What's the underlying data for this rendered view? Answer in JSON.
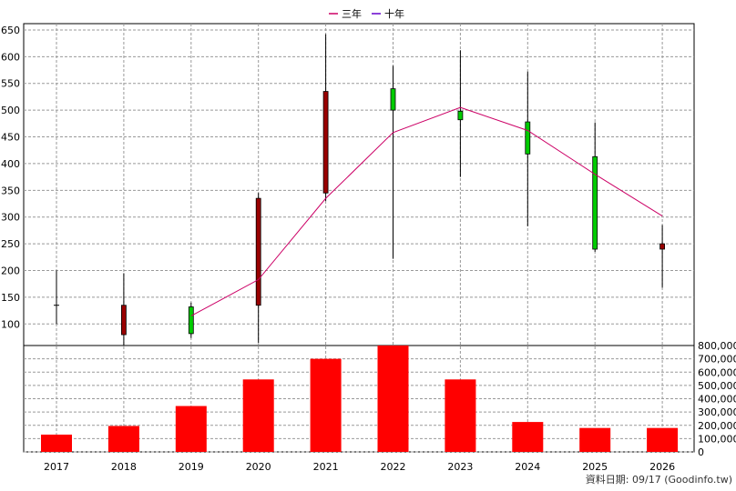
{
  "chart_data": {
    "type": "candlestick",
    "legend": {
      "placement": "top-center",
      "entries": [
        {
          "label": "三年",
          "color": "#cc0066"
        },
        {
          "label": "十年",
          "color": "#6600cc"
        }
      ]
    },
    "categories": [
      "2017",
      "2018",
      "2019",
      "2020",
      "2021",
      "2022",
      "2023",
      "2024",
      "2025",
      "2026"
    ],
    "price_axis": {
      "ylim": [
        58,
        655
      ],
      "ticks": [
        100,
        150,
        200,
        250,
        300,
        350,
        400,
        450,
        500,
        550,
        600,
        650
      ],
      "grid": true
    },
    "candles": [
      {
        "year": "2017",
        "open": 135,
        "close": 135,
        "high": 200,
        "low": 100
      },
      {
        "year": "2018",
        "open": 80,
        "close": 135,
        "high": 195,
        "low": 60
      },
      {
        "year": "2019",
        "open": 132,
        "close": 82,
        "high": 140,
        "low": 74
      },
      {
        "year": "2020",
        "open": 135,
        "close": 335,
        "high": 345,
        "low": 65
      },
      {
        "year": "2021",
        "open": 345,
        "close": 535,
        "high": 642,
        "low": 330
      },
      {
        "year": "2022",
        "open": 540,
        "close": 500,
        "high": 583,
        "low": 222
      },
      {
        "year": "2023",
        "open": 498,
        "close": 482,
        "high": 612,
        "low": 375
      },
      {
        "year": "2024",
        "open": 478,
        "close": 418,
        "high": 572,
        "low": 283
      },
      {
        "year": "2025",
        "open": 413,
        "close": 240,
        "high": 477,
        "low": 235
      },
      {
        "year": "2026",
        "open": 240,
        "close": 250,
        "high": 285,
        "low": 168
      }
    ],
    "up_color": "#990000",
    "down_color": "#00cc00",
    "series": [
      {
        "name": "三年",
        "color": "#cc0066",
        "x": [
          "2019",
          "2020",
          "2021",
          "2022",
          "2023",
          "2024",
          "2025",
          "2026"
        ],
        "values": [
          115,
          183,
          335,
          458,
          505,
          462,
          380,
          302
        ]
      }
    ],
    "volume_axis": {
      "ylim": [
        0,
        800000
      ],
      "ticks": [
        0,
        100000,
        200000,
        300000,
        400000,
        500000,
        600000,
        700000,
        800000
      ],
      "tick_labels": [
        "0",
        "100,000",
        "200,000",
        "300,000",
        "400,000",
        "500,000",
        "600,000",
        "700,000",
        "800,000"
      ],
      "grid": true
    },
    "volume_color": "#ff0000",
    "volumes": [
      130000,
      195000,
      345000,
      545000,
      700000,
      810000,
      545000,
      225000,
      180000,
      180000
    ]
  },
  "footer": {
    "source_text": "資料日期: 09/17  (Goodinfo.tw)"
  }
}
